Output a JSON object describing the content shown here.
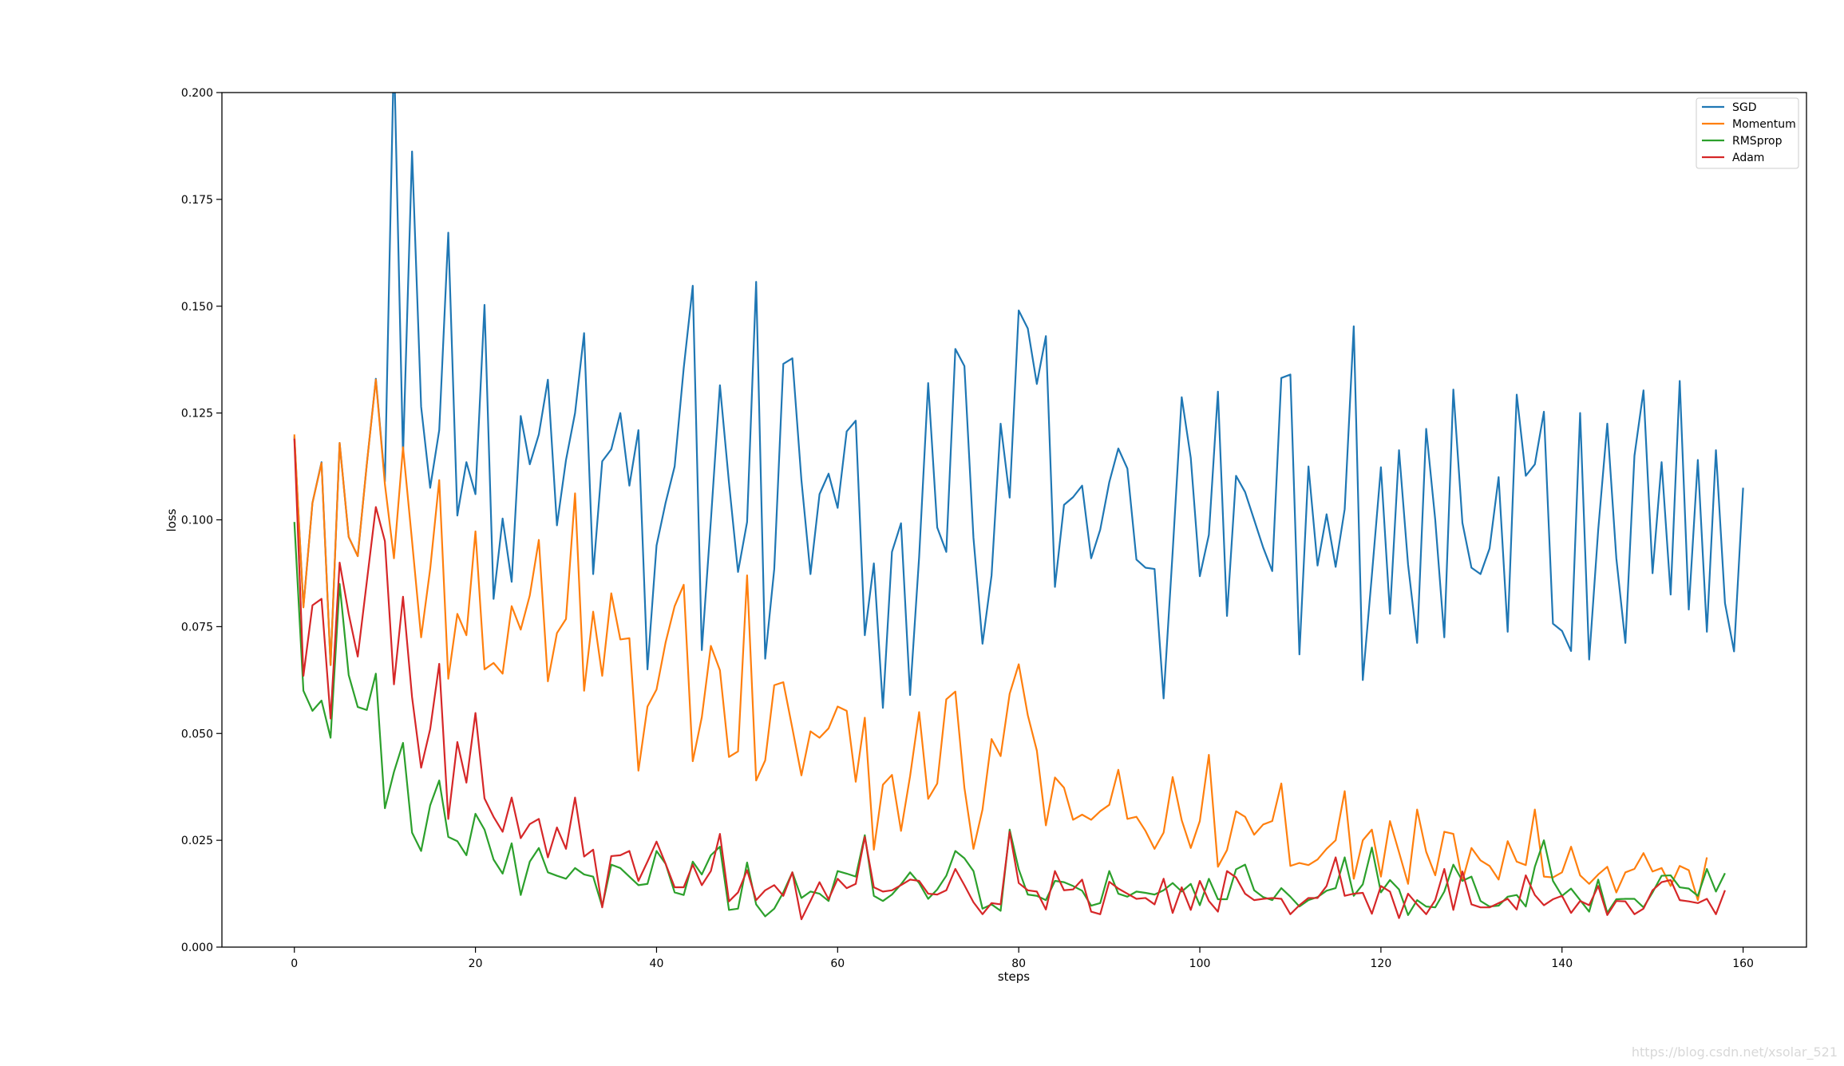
{
  "chart_data": {
    "type": "line",
    "title": "",
    "xlabel": "steps",
    "ylabel": "loss",
    "xlim": [
      -8,
      167
    ],
    "ylim": [
      0.0,
      0.2
    ],
    "xticks": [
      0,
      20,
      40,
      60,
      80,
      100,
      120,
      140,
      160
    ],
    "xtick_labels": [
      "0",
      "20",
      "40",
      "60",
      "80",
      "100",
      "120",
      "140",
      "160"
    ],
    "yticks": [
      0.0,
      0.025,
      0.05,
      0.075,
      0.1,
      0.125,
      0.15,
      0.175,
      0.2
    ],
    "ytick_labels": [
      "0.000",
      "0.025",
      "0.050",
      "0.075",
      "0.100",
      "0.125",
      "0.150",
      "0.175",
      "0.200"
    ],
    "grid": false,
    "legend_position": "top-right",
    "series": [
      {
        "name": "SGD",
        "color": "#1f77b4",
        "values": [
          0.1195,
          0.0797,
          0.104,
          0.1135,
          0.066,
          0.118,
          0.096,
          0.0915,
          0.113,
          0.133,
          0.109,
          0.21,
          0.115,
          0.1862,
          0.1265,
          0.1075,
          0.121,
          0.1672,
          0.101,
          0.1135,
          0.106,
          0.1503,
          0.0815,
          0.1003,
          0.0855,
          0.1243,
          0.113,
          0.12,
          0.1328,
          0.0987,
          0.114,
          0.125,
          0.1437,
          0.0873,
          0.1137,
          0.1165,
          0.125,
          0.108,
          0.121,
          0.065,
          0.094,
          0.104,
          0.1125,
          0.1355,
          0.1548,
          0.0695,
          0.0998,
          0.1315,
          0.1087,
          0.0878,
          0.0995,
          0.1557,
          0.0675,
          0.0885,
          0.1365,
          0.1378,
          0.1093,
          0.0873,
          0.106,
          0.1108,
          0.1028,
          0.1207,
          0.1232,
          0.073,
          0.0898,
          0.056,
          0.0925,
          0.0992,
          0.059,
          0.0913,
          0.132,
          0.0982,
          0.0925,
          0.14,
          0.136,
          0.0958,
          0.071,
          0.087,
          0.1225,
          0.1052,
          0.149,
          0.1448,
          0.1318,
          0.143,
          0.0843,
          0.1035,
          0.1053,
          0.108,
          0.091,
          0.0977,
          0.1088,
          0.1167,
          0.112,
          0.0907,
          0.0888,
          0.0885,
          0.0582,
          0.0925,
          0.1287,
          0.1145,
          0.0868,
          0.0965,
          0.13,
          0.0775,
          0.1103,
          0.1065,
          0.1,
          0.0935,
          0.088,
          0.1332,
          0.134,
          0.0685,
          0.1125,
          0.0893,
          0.1013,
          0.089,
          0.1025,
          0.1453,
          0.0625,
          0.087,
          0.1123,
          0.078,
          0.1163,
          0.0895,
          0.0712,
          0.1213,
          0.1,
          0.0725,
          0.1305,
          0.0993,
          0.0888,
          0.0873,
          0.0933,
          0.11,
          0.0738,
          0.1293,
          0.1103,
          0.113,
          0.1253,
          0.0757,
          0.074,
          0.0693,
          0.125,
          0.0673,
          0.0977,
          0.1225,
          0.091,
          0.0712,
          0.115,
          0.1303,
          0.0875,
          0.1135,
          0.0825,
          0.1325,
          0.079,
          0.114,
          0.0738,
          0.1163,
          0.0805,
          0.0692,
          0.1075
        ]
      },
      {
        "name": "Momentum",
        "color": "#ff7f0e",
        "values": [
          0.12,
          0.0795,
          0.104,
          0.1133,
          0.066,
          0.118,
          0.096,
          0.0915,
          0.113,
          0.1328,
          0.1083,
          0.091,
          0.117,
          0.095,
          0.0725,
          0.0885,
          0.1093,
          0.0628,
          0.078,
          0.073,
          0.0973,
          0.065,
          0.0665,
          0.064,
          0.0798,
          0.0743,
          0.0823,
          0.0953,
          0.0622,
          0.0735,
          0.0768,
          0.1062,
          0.06,
          0.0785,
          0.0635,
          0.0828,
          0.072,
          0.0723,
          0.0413,
          0.0563,
          0.0603,
          0.0713,
          0.0798,
          0.0848,
          0.0435,
          0.0538,
          0.0705,
          0.0648,
          0.0445,
          0.0458,
          0.087,
          0.039,
          0.0437,
          0.0613,
          0.062,
          0.0512,
          0.0402,
          0.0505,
          0.049,
          0.0512,
          0.0563,
          0.0553,
          0.0387,
          0.0537,
          0.0228,
          0.038,
          0.0403,
          0.0272,
          0.04,
          0.055,
          0.0347,
          0.0383,
          0.058,
          0.0598,
          0.0373,
          0.023,
          0.0322,
          0.0487,
          0.0447,
          0.0593,
          0.0662,
          0.0543,
          0.046,
          0.0285,
          0.0397,
          0.0373,
          0.0298,
          0.031,
          0.0298,
          0.0318,
          0.0333,
          0.0415,
          0.03,
          0.0305,
          0.0272,
          0.023,
          0.0268,
          0.0398,
          0.0297,
          0.0232,
          0.0295,
          0.045,
          0.0188,
          0.0227,
          0.0318,
          0.0305,
          0.0263,
          0.0287,
          0.0295,
          0.0383,
          0.019,
          0.0197,
          0.0192,
          0.0205,
          0.023,
          0.025,
          0.0365,
          0.016,
          0.025,
          0.0275,
          0.0165,
          0.0295,
          0.0222,
          0.0148,
          0.0322,
          0.0223,
          0.0168,
          0.027,
          0.0265,
          0.0155,
          0.0232,
          0.0203,
          0.019,
          0.0158,
          0.0248,
          0.02,
          0.0192,
          0.0322,
          0.0165,
          0.0163,
          0.0175,
          0.0235,
          0.0168,
          0.0148,
          0.017,
          0.0188,
          0.0128,
          0.0175,
          0.0183,
          0.022,
          0.0177,
          0.0185,
          0.0143,
          0.019,
          0.018,
          0.011,
          0.021
        ]
      },
      {
        "name": "RMSprop",
        "color": "#2ca02c",
        "values": [
          0.0995,
          0.06,
          0.0553,
          0.0577,
          0.049,
          0.085,
          0.0637,
          0.0562,
          0.0555,
          0.064,
          0.0325,
          0.041,
          0.0478,
          0.0268,
          0.0225,
          0.0332,
          0.039,
          0.0258,
          0.0248,
          0.0215,
          0.0312,
          0.0275,
          0.0205,
          0.0172,
          0.0243,
          0.0122,
          0.02,
          0.0232,
          0.0175,
          0.0167,
          0.016,
          0.0185,
          0.017,
          0.0165,
          0.0095,
          0.0193,
          0.0185,
          0.0165,
          0.0145,
          0.0148,
          0.0225,
          0.0195,
          0.0128,
          0.0122,
          0.02,
          0.017,
          0.0215,
          0.0235,
          0.0087,
          0.009,
          0.0198,
          0.01,
          0.0072,
          0.009,
          0.0128,
          0.0175,
          0.0115,
          0.013,
          0.0125,
          0.0108,
          0.0178,
          0.0172,
          0.0165,
          0.0262,
          0.012,
          0.0108,
          0.0123,
          0.0147,
          0.0175,
          0.015,
          0.0113,
          0.0135,
          0.0167,
          0.0225,
          0.0208,
          0.0178,
          0.009,
          0.01,
          0.0085,
          0.0275,
          0.0182,
          0.0123,
          0.012,
          0.011,
          0.0155,
          0.0152,
          0.0143,
          0.0132,
          0.0097,
          0.0103,
          0.0178,
          0.0125,
          0.0118,
          0.013,
          0.0127,
          0.0123,
          0.0133,
          0.015,
          0.013,
          0.0148,
          0.0098,
          0.016,
          0.0112,
          0.0112,
          0.0182,
          0.0193,
          0.0133,
          0.0117,
          0.011,
          0.0138,
          0.0118,
          0.0095,
          0.011,
          0.0117,
          0.0132,
          0.0138,
          0.021,
          0.012,
          0.0147,
          0.0233,
          0.0128,
          0.0157,
          0.0135,
          0.0075,
          0.011,
          0.0095,
          0.0093,
          0.013,
          0.0193,
          0.0155,
          0.0165,
          0.0108,
          0.0095,
          0.0097,
          0.0118,
          0.0122,
          0.0095,
          0.0188,
          0.025,
          0.0155,
          0.012,
          0.0137,
          0.011,
          0.0083,
          0.0158,
          0.008,
          0.0112,
          0.0113,
          0.0113,
          0.0093,
          0.0128,
          0.0167,
          0.0168,
          0.014,
          0.0137,
          0.012,
          0.0183,
          0.013,
          0.0173
        ]
      },
      {
        "name": "Adam",
        "color": "#d62728",
        "values": [
          0.119,
          0.0635,
          0.08,
          0.0815,
          0.0535,
          0.09,
          0.078,
          0.068,
          0.0855,
          0.103,
          0.095,
          0.0615,
          0.082,
          0.0585,
          0.042,
          0.051,
          0.0663,
          0.03,
          0.048,
          0.0385,
          0.0548,
          0.0348,
          0.0305,
          0.027,
          0.035,
          0.0255,
          0.0288,
          0.03,
          0.021,
          0.028,
          0.023,
          0.035,
          0.0212,
          0.0228,
          0.0093,
          0.0213,
          0.0215,
          0.0225,
          0.0155,
          0.02,
          0.0247,
          0.0195,
          0.014,
          0.014,
          0.0193,
          0.0145,
          0.0178,
          0.0265,
          0.0107,
          0.0128,
          0.018,
          0.011,
          0.0133,
          0.0145,
          0.012,
          0.0175,
          0.0065,
          0.0108,
          0.0152,
          0.0112,
          0.016,
          0.0138,
          0.0148,
          0.0258,
          0.014,
          0.013,
          0.0133,
          0.0145,
          0.0158,
          0.0155,
          0.0125,
          0.0123,
          0.0133,
          0.0183,
          0.0145,
          0.0105,
          0.0077,
          0.0103,
          0.01,
          0.027,
          0.015,
          0.0133,
          0.013,
          0.0088,
          0.0178,
          0.0133,
          0.0135,
          0.0158,
          0.0083,
          0.0077,
          0.0153,
          0.0137,
          0.0125,
          0.0113,
          0.0115,
          0.01,
          0.016,
          0.008,
          0.014,
          0.0087,
          0.0155,
          0.0108,
          0.0083,
          0.0178,
          0.0163,
          0.0125,
          0.011,
          0.0113,
          0.0115,
          0.0113,
          0.0077,
          0.0098,
          0.0115,
          0.0115,
          0.0143,
          0.021,
          0.012,
          0.0125,
          0.0127,
          0.0078,
          0.0143,
          0.013,
          0.0068,
          0.0125,
          0.01,
          0.0077,
          0.011,
          0.0183,
          0.0087,
          0.0177,
          0.01,
          0.0093,
          0.0093,
          0.0103,
          0.0113,
          0.0088,
          0.0168,
          0.0122,
          0.0098,
          0.0112,
          0.012,
          0.008,
          0.0108,
          0.0098,
          0.0143,
          0.0075,
          0.0108,
          0.0107,
          0.0077,
          0.009,
          0.0133,
          0.0152,
          0.0157,
          0.011,
          0.0107,
          0.0103,
          0.0113,
          0.0077,
          0.0133
        ]
      }
    ]
  },
  "watermark": "https://blog.csdn.net/xsolar_521"
}
